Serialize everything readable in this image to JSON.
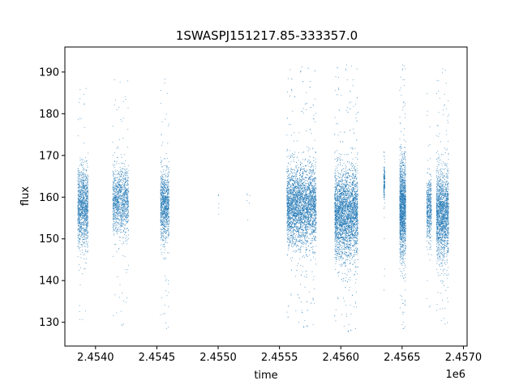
{
  "chart_data": {
    "type": "scatter",
    "title": "1SWASPJ151217.85-333357.0",
    "xlabel": "time",
    "ylabel": "flux",
    "x_offset_label": "1e6",
    "x_tick_labels": [
      "2.4540",
      "2.4545",
      "2.4550",
      "2.4555",
      "2.4560",
      "2.4565",
      "2.4570"
    ],
    "x_ticks": [
      2454000,
      2454500,
      2455000,
      2455500,
      2456000,
      2456500,
      2457000
    ],
    "y_ticks": [
      130,
      140,
      150,
      160,
      170,
      180,
      190
    ],
    "xlim": [
      2453750,
      2457030
    ],
    "ylim": [
      124.3,
      196.0
    ],
    "grid": false,
    "marker_color": "#1f77b4",
    "series": [
      {
        "values": [
          {
            "x_range": [
              2453855,
              2453940
            ],
            "base": 157.5,
            "spread": 8.5,
            "density": 1200,
            "outlier_range": [
              130.5,
              187.5
            ]
          },
          {
            "x_range": [
              2454140,
              2454270
            ],
            "base": 159.0,
            "spread": 7.0,
            "density": 1200,
            "outlier_range": [
              128.5,
              189.5
            ]
          },
          {
            "x_range": [
              2454530,
              2454600
            ],
            "base": 158.0,
            "spread": 7.5,
            "density": 1000,
            "outlier_range": [
              127.5,
              189.0
            ]
          },
          {
            "x_range": [
              2455000,
              2455010
            ],
            "base": 158.5,
            "spread": 3.0,
            "density": 6,
            "outlier_range": [
              142.0,
              161.0
            ]
          },
          {
            "x_range": [
              2455230,
              2455260
            ],
            "base": 159.5,
            "spread": 3.5,
            "density": 6,
            "outlier_range": [
              154.0,
              171.0
            ]
          },
          {
            "x_range": [
              2455560,
              2455800
            ],
            "base": 158.0,
            "spread": 8.5,
            "density": 3800,
            "outlier_range": [
              128.0,
              192.0
            ]
          },
          {
            "x_range": [
              2455950,
              2456140
            ],
            "base": 156.0,
            "spread": 9.5,
            "density": 3500,
            "outlier_range": [
              127.0,
              192.5
            ]
          },
          {
            "x_range": [
              2456350,
              2456360
            ],
            "base": 164.0,
            "spread": 4.5,
            "density": 150,
            "outlier_range": [
              135.0,
              172.0
            ]
          },
          {
            "x_range": [
              2456480,
              2456530
            ],
            "base": 157.5,
            "spread": 10.5,
            "density": 1500,
            "outlier_range": [
              127.5,
              192.5
            ]
          },
          {
            "x_range": [
              2456700,
              2456740
            ],
            "base": 157.0,
            "spread": 6.5,
            "density": 500,
            "outlier_range": [
              133.0,
              186.0
            ]
          },
          {
            "x_range": [
              2456780,
              2456880
            ],
            "base": 156.0,
            "spread": 9.5,
            "density": 1800,
            "outlier_range": [
              128.5,
              191.5
            ]
          }
        ]
      }
    ]
  }
}
